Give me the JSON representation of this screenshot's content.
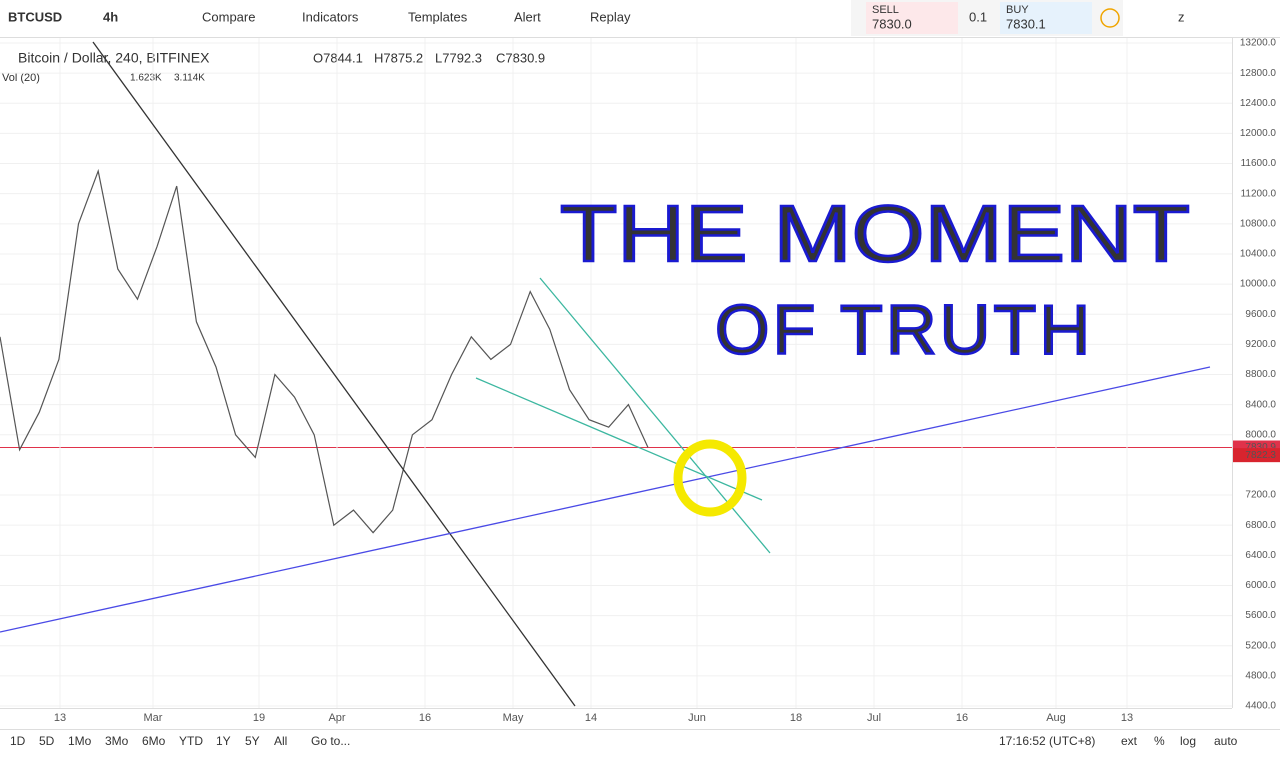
{
  "toolbar": {
    "symbol": "BTCUSD",
    "interval": "4h",
    "buttons": [
      "Compare",
      "Indicators",
      "Templates",
      "Alert",
      "Replay"
    ]
  },
  "trade": {
    "sell_label": "SELL",
    "sell_price": "7830.0",
    "quantity": "0.1",
    "buy_label": "BUY",
    "buy_price": "7830.1",
    "layout": "z"
  },
  "legend": {
    "title": "Bitcoin / Dollar, 240, BITFINEX",
    "open": "O7844.1",
    "high": "H7875.2",
    "low": "L7792.3",
    "close": "C7830.9",
    "volume_title": "Vol (20)",
    "volume_values": [
      "1.623K",
      "3.114K"
    ]
  },
  "price_axis": {
    "ylim": [
      4400,
      13200
    ],
    "ticks": [
      {
        "value": 13200,
        "label": "13200.0"
      },
      {
        "value": 12800,
        "label": "12800.0"
      },
      {
        "value": 12400,
        "label": "12400.0"
      },
      {
        "value": 12000,
        "label": "12000.0"
      },
      {
        "value": 11600,
        "label": "11600.0"
      },
      {
        "value": 11200,
        "label": "11200.0"
      },
      {
        "value": 10800,
        "label": "10800.0"
      },
      {
        "value": 10400,
        "label": "10400.0"
      },
      {
        "value": 10000,
        "label": "10000.0"
      },
      {
        "value": 9600,
        "label": "9600.0"
      },
      {
        "value": 9200,
        "label": "9200.0"
      },
      {
        "value": 8800,
        "label": "8800.0"
      },
      {
        "value": 8400,
        "label": "8400.0"
      },
      {
        "value": 8000,
        "label": "8000.0"
      },
      {
        "value": 7200,
        "label": "7200.0"
      },
      {
        "value": 6800,
        "label": "6800.0"
      },
      {
        "value": 6400,
        "label": "6400.0"
      },
      {
        "value": 6000,
        "label": "6000.0"
      },
      {
        "value": 5600,
        "label": "5600.0"
      },
      {
        "value": 5200,
        "label": "5200.0"
      },
      {
        "value": 4800,
        "label": "4800.0"
      },
      {
        "value": 4400,
        "label": "4400.0"
      }
    ],
    "last_price": {
      "value": 7830.9,
      "label": "7830.9"
    },
    "second_price": {
      "value": 7822.3,
      "label": "7822.3"
    }
  },
  "time_axis": {
    "labels": [
      "13",
      "Mar",
      "19",
      "Apr",
      "16",
      "May",
      "14",
      "Jun",
      "18",
      "Jul",
      "16",
      "Aug",
      "13"
    ]
  },
  "price_series": [
    9300,
    7800,
    8300,
    9000,
    10800,
    11500,
    10200,
    9800,
    10500,
    11300,
    9500,
    8900,
    8000,
    7700,
    8800,
    8500,
    8000,
    6800,
    7000,
    6700,
    7000,
    8000,
    8200,
    8800,
    9300,
    9000,
    9200,
    9900,
    9400,
    8600,
    8200,
    8100,
    8400,
    7830.9
  ],
  "annotation": [
    "THE MOMENT",
    "OF TRUTH"
  ],
  "bottom_bar": {
    "ranges": [
      "1D",
      "5D",
      "1Mo",
      "3Mo",
      "6Mo",
      "YTD",
      "1Y",
      "5Y",
      "All"
    ],
    "goto": "Go to...",
    "clock": "17:16:52 (UTC+8)",
    "options": [
      "ext",
      "%",
      "log",
      "auto"
    ]
  }
}
